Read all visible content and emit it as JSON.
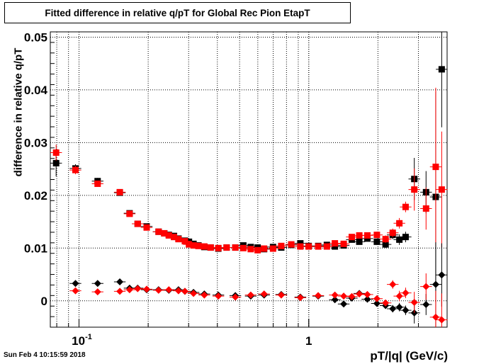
{
  "title": "Fitted difference in relative q/pT for Global Rec Pion EtapT",
  "timestamp": "Sun Feb  4 10:15:59 2018",
  "chart_data": {
    "type": "scatter",
    "title": "Fitted difference in relative q/pT for Global Rec Pion EtapT",
    "xlabel": "pT/|q| (GeV/c)",
    "ylabel": "difference in relative q/pT",
    "xscale": "log",
    "xlim": [
      0.075,
      4.0
    ],
    "ylim": [
      -0.005,
      0.051
    ],
    "grid": true,
    "x_ticks": [
      {
        "value": 0.1,
        "label": "10",
        "exp": "-1"
      },
      {
        "value": 1,
        "label": "1",
        "exp": ""
      }
    ],
    "y_ticks": [
      {
        "value": 0,
        "label": "0"
      },
      {
        "value": 0.01,
        "label": "0.01"
      },
      {
        "value": 0.02,
        "label": "0.02"
      },
      {
        "value": 0.03,
        "label": "0.03"
      },
      {
        "value": 0.04,
        "label": "0.04"
      },
      {
        "value": 0.05,
        "label": "0.05"
      }
    ],
    "series": [
      {
        "marker": "square",
        "color": "#000000",
        "points": [
          [
            0.0795,
            0.0261,
            0.0025
          ],
          [
            0.0965,
            0.0251,
            0.0008
          ],
          [
            0.1205,
            0.0227,
            0.0006
          ],
          [
            0.1505,
            0.0205,
            0.0004
          ],
          [
            0.166,
            0.0166,
            0.0004
          ],
          [
            0.18,
            0.0146,
            0.0004
          ],
          [
            0.197,
            0.0141,
            0.0004
          ],
          [
            0.222,
            0.0131,
            0.0003
          ],
          [
            0.235,
            0.0128,
            0.0003
          ],
          [
            0.246,
            0.0125,
            0.0003
          ],
          [
            0.259,
            0.0123,
            0.0003
          ],
          [
            0.271,
            0.0118,
            0.0003
          ],
          [
            0.289,
            0.0114,
            0.0003
          ],
          [
            0.301,
            0.0112,
            0.0003
          ],
          [
            0.315,
            0.0108,
            0.0003
          ],
          [
            0.331,
            0.0105,
            0.0003
          ],
          [
            0.351,
            0.0102,
            0.0003
          ],
          [
            0.374,
            0.0101,
            0.0003
          ],
          [
            0.404,
            0.0099,
            0.0003
          ],
          [
            0.439,
            0.0101,
            0.0003
          ],
          [
            0.479,
            0.0101,
            0.0003
          ],
          [
            0.519,
            0.0105,
            0.0003
          ],
          [
            0.559,
            0.0102,
            0.0003
          ],
          [
            0.599,
            0.0101,
            0.0003
          ],
          [
            0.639,
            0.0098,
            0.0003
          ],
          [
            0.699,
            0.0102,
            0.0003
          ],
          [
            0.759,
            0.0101,
            0.0003
          ],
          [
            0.839,
            0.0106,
            0.0003
          ],
          [
            0.919,
            0.0109,
            0.0003
          ],
          [
            0.999,
            0.0104,
            0.0004
          ],
          [
            1.099,
            0.0104,
            0.0004
          ],
          [
            1.199,
            0.0106,
            0.0004
          ],
          [
            1.299,
            0.0103,
            0.0004
          ],
          [
            1.419,
            0.0105,
            0.0004
          ],
          [
            1.539,
            0.0116,
            0.0005
          ],
          [
            1.659,
            0.0112,
            0.0005
          ],
          [
            1.799,
            0.0118,
            0.0005
          ],
          [
            1.979,
            0.0112,
            0.0006
          ],
          [
            2.159,
            0.0107,
            0.0007
          ],
          [
            2.319,
            0.0125,
            0.0008
          ],
          [
            2.479,
            0.0116,
            0.001
          ],
          [
            2.639,
            0.0121,
            0.001
          ],
          [
            2.879,
            0.0231,
            0.004
          ],
          [
            3.239,
            0.0206,
            0.004
          ],
          [
            3.569,
            0.0197,
            0.02
          ],
          [
            3.789,
            0.0439,
            0.011
          ]
        ]
      },
      {
        "marker": "square",
        "color": "#ff0000",
        "points": [
          [
            0.0795,
            0.0281,
            0.0015
          ],
          [
            0.0965,
            0.0248,
            0.0008
          ],
          [
            0.1205,
            0.0222,
            0.0006
          ],
          [
            0.1505,
            0.0206,
            0.0004
          ],
          [
            0.166,
            0.0165,
            0.0004
          ],
          [
            0.18,
            0.0146,
            0.0004
          ],
          [
            0.197,
            0.0139,
            0.0004
          ],
          [
            0.222,
            0.0131,
            0.0003
          ],
          [
            0.235,
            0.0128,
            0.0003
          ],
          [
            0.246,
            0.0124,
            0.0003
          ],
          [
            0.259,
            0.0121,
            0.0003
          ],
          [
            0.271,
            0.0117,
            0.0003
          ],
          [
            0.289,
            0.0113,
            0.0003
          ],
          [
            0.301,
            0.0107,
            0.0003
          ],
          [
            0.315,
            0.0105,
            0.0003
          ],
          [
            0.331,
            0.0104,
            0.0003
          ],
          [
            0.351,
            0.0103,
            0.0003
          ],
          [
            0.374,
            0.0101,
            0.0003
          ],
          [
            0.404,
            0.01,
            0.0003
          ],
          [
            0.439,
            0.0101,
            0.0003
          ],
          [
            0.479,
            0.0101,
            0.0003
          ],
          [
            0.519,
            0.01,
            0.0003
          ],
          [
            0.559,
            0.0098,
            0.0003
          ],
          [
            0.599,
            0.0096,
            0.0003
          ],
          [
            0.639,
            0.0099,
            0.0003
          ],
          [
            0.699,
            0.0099,
            0.0003
          ],
          [
            0.759,
            0.0104,
            0.0003
          ],
          [
            0.839,
            0.0107,
            0.0003
          ],
          [
            0.919,
            0.0103,
            0.0003
          ],
          [
            0.999,
            0.0103,
            0.0004
          ],
          [
            1.099,
            0.0103,
            0.0004
          ],
          [
            1.199,
            0.0103,
            0.0004
          ],
          [
            1.299,
            0.0109,
            0.0004
          ],
          [
            1.419,
            0.0108,
            0.0004
          ],
          [
            1.539,
            0.0121,
            0.0005
          ],
          [
            1.659,
            0.0124,
            0.0005
          ],
          [
            1.799,
            0.0124,
            0.0005
          ],
          [
            1.979,
            0.0125,
            0.0006
          ],
          [
            2.159,
            0.0117,
            0.0007
          ],
          [
            2.319,
            0.0129,
            0.0008
          ],
          [
            2.479,
            0.0147,
            0.001
          ],
          [
            2.639,
            0.0178,
            0.001
          ],
          [
            2.879,
            0.0211,
            0.004
          ],
          [
            3.239,
            0.0175,
            0.004
          ],
          [
            3.569,
            0.0254,
            0.015
          ],
          [
            3.789,
            0.0211,
            0.011
          ]
        ]
      },
      {
        "marker": "diamond",
        "color": "#000000",
        "points": [
          [
            0.0965,
            0.0033,
            0.0005
          ],
          [
            0.1205,
            0.0033,
            0.0003
          ],
          [
            0.1505,
            0.0036,
            0.0003
          ],
          [
            0.166,
            0.0024,
            0.0003
          ],
          [
            0.18,
            0.0024,
            0.0003
          ],
          [
            0.197,
            0.0021,
            0.0003
          ],
          [
            0.222,
            0.0021,
            0.0002
          ],
          [
            0.246,
            0.002,
            0.0002
          ],
          [
            0.271,
            0.0021,
            0.0002
          ],
          [
            0.289,
            0.0018,
            0.0002
          ],
          [
            0.315,
            0.0016,
            0.0002
          ],
          [
            0.351,
            0.0013,
            0.0002
          ],
          [
            0.404,
            0.0011,
            0.0002
          ],
          [
            0.479,
            0.001,
            0.0002
          ],
          [
            0.559,
            0.0009,
            0.0002
          ],
          [
            0.639,
            0.0011,
            0.0002
          ],
          [
            0.759,
            0.0012,
            0.0002
          ],
          [
            0.919,
            0.0007,
            0.0002
          ],
          [
            1.099,
            0.0009,
            0.0003
          ],
          [
            1.299,
            0.0002,
            0.0003
          ],
          [
            1.419,
            -0.0006,
            0.0003
          ],
          [
            1.539,
            0.0005,
            0.0004
          ],
          [
            1.659,
            0.0014,
            0.0004
          ],
          [
            1.799,
            0.0003,
            0.0005
          ],
          [
            1.979,
            -0.0005,
            0.0005
          ],
          [
            2.159,
            -0.0009,
            0.0006
          ],
          [
            2.319,
            -0.0015,
            0.0007
          ],
          [
            2.479,
            -0.0012,
            0.0008
          ],
          [
            2.639,
            -0.0018,
            0.0009
          ],
          [
            2.879,
            -0.0023,
            0.002
          ],
          [
            3.239,
            -0.0007,
            0.002
          ],
          [
            3.569,
            0.0031,
            0.008
          ],
          [
            3.789,
            0.0049,
            0.006
          ]
        ]
      },
      {
        "marker": "diamond",
        "color": "#ff0000",
        "points": [
          [
            0.0965,
            0.0019,
            0.0005
          ],
          [
            0.1205,
            0.0017,
            0.0003
          ],
          [
            0.1505,
            0.0018,
            0.0003
          ],
          [
            0.166,
            0.0021,
            0.0003
          ],
          [
            0.18,
            0.0023,
            0.0003
          ],
          [
            0.197,
            0.0022,
            0.0003
          ],
          [
            0.222,
            0.002,
            0.0002
          ],
          [
            0.246,
            0.0021,
            0.0002
          ],
          [
            0.271,
            0.0019,
            0.0002
          ],
          [
            0.289,
            0.0018,
            0.0002
          ],
          [
            0.315,
            0.0014,
            0.0002
          ],
          [
            0.351,
            0.0011,
            0.0002
          ],
          [
            0.404,
            0.0009,
            0.0002
          ],
          [
            0.479,
            0.0007,
            0.0002
          ],
          [
            0.559,
            0.0011,
            0.0002
          ],
          [
            0.639,
            0.0013,
            0.0002
          ],
          [
            0.759,
            0.0011,
            0.0002
          ],
          [
            0.919,
            0.0006,
            0.0002
          ],
          [
            1.099,
            0.001,
            0.0003
          ],
          [
            1.299,
            0.0011,
            0.0003
          ],
          [
            1.419,
            0.0009,
            0.0003
          ],
          [
            1.539,
            0.0008,
            0.0004
          ],
          [
            1.659,
            0.0013,
            0.0004
          ],
          [
            1.799,
            0.0012,
            0.0005
          ],
          [
            1.979,
            0.0004,
            0.0005
          ],
          [
            2.159,
            -0.0004,
            0.0006
          ],
          [
            2.319,
            0.0031,
            0.0008
          ],
          [
            2.479,
            0.0009,
            0.001
          ],
          [
            2.639,
            0.0015,
            0.001
          ],
          [
            2.879,
            -0.0003,
            0.002
          ],
          [
            3.239,
            0.0027,
            0.0025
          ],
          [
            3.569,
            -0.0031,
            0.005
          ],
          [
            3.789,
            -0.0036,
            0.005
          ]
        ]
      }
    ]
  }
}
